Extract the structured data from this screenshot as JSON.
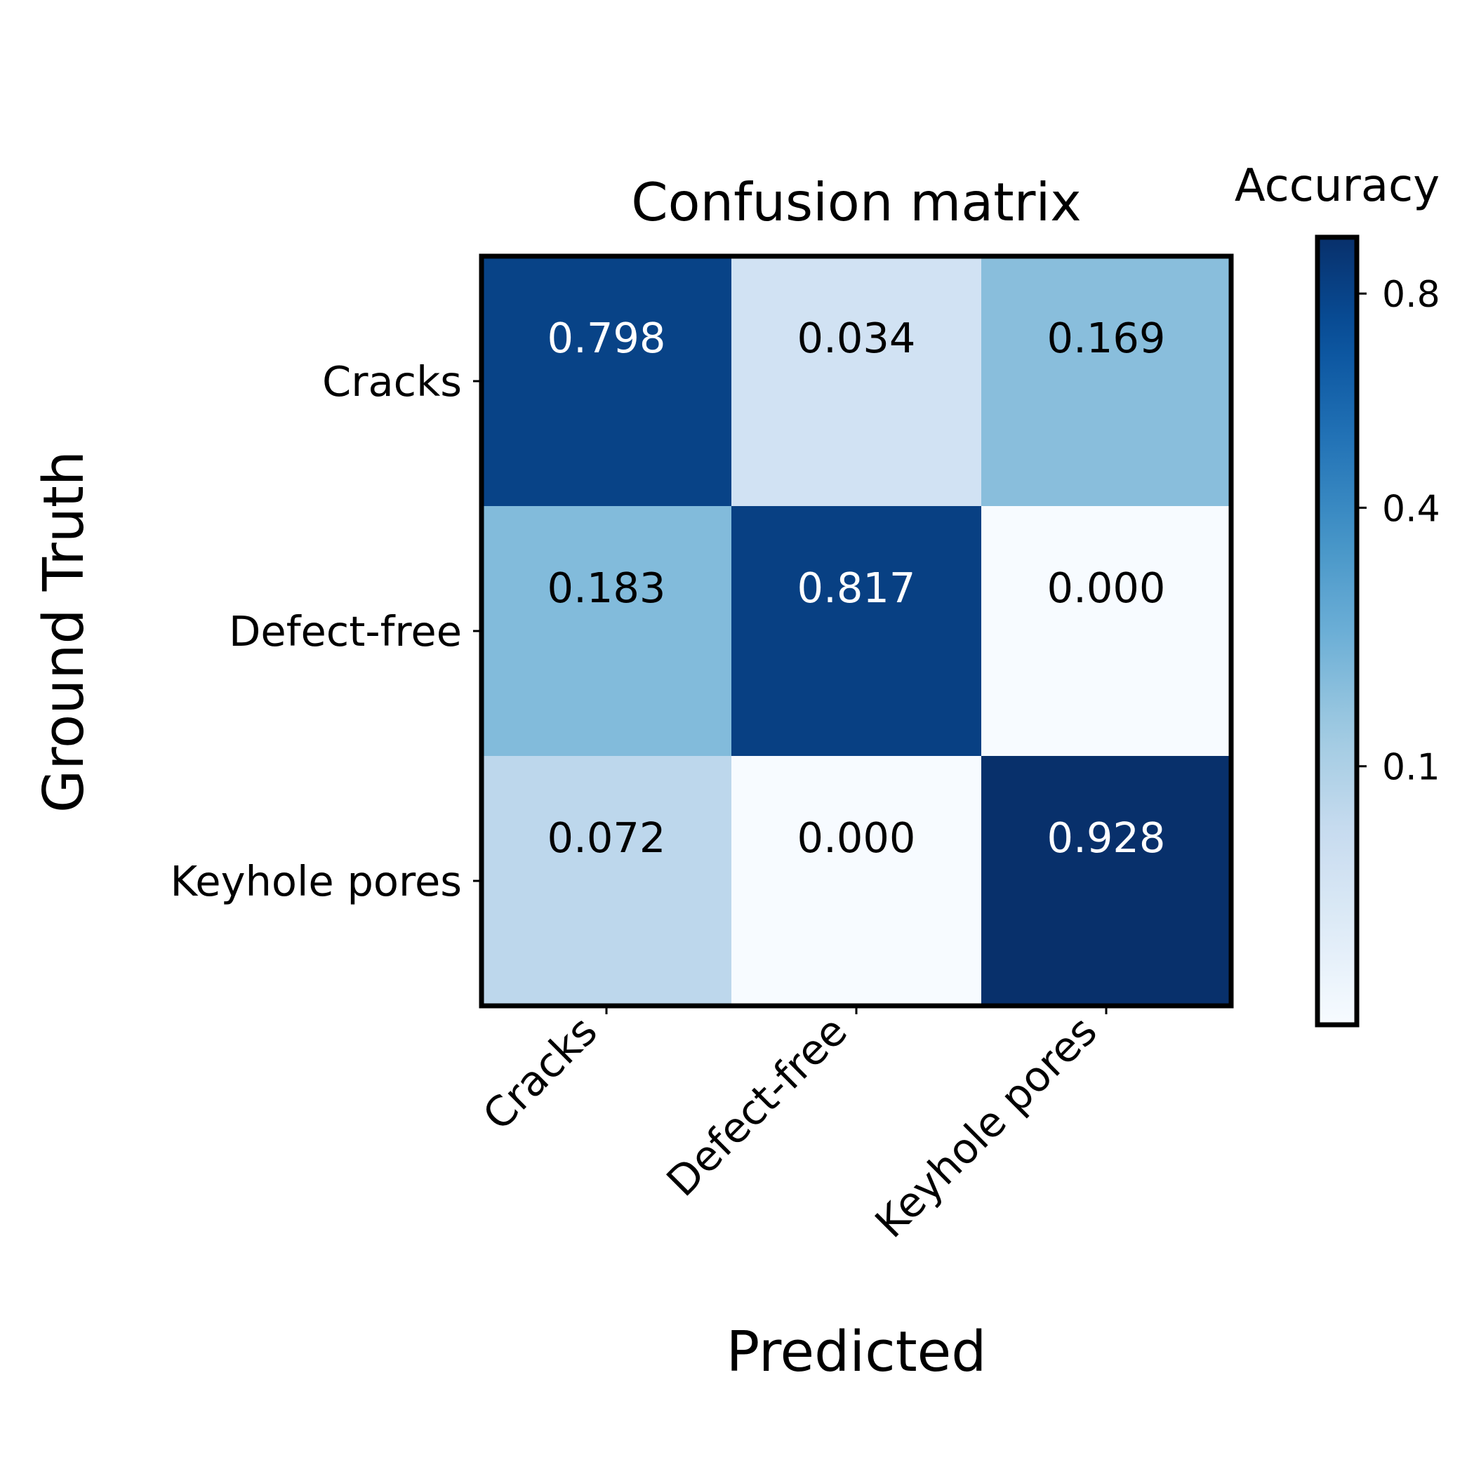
{
  "chart_data": {
    "type": "heatmap",
    "title": "Confusion matrix",
    "xlabel": "Predicted",
    "ylabel": "Ground Truth",
    "x_categories": [
      "Cracks",
      "Defect-free",
      "Keyhole pores"
    ],
    "y_categories": [
      "Cracks",
      "Defect-free",
      "Keyhole pores"
    ],
    "values": [
      [
        0.798,
        0.034,
        0.169
      ],
      [
        0.183,
        0.817,
        0.0
      ],
      [
        0.072,
        0.0,
        0.928
      ]
    ],
    "cell_labels": [
      [
        "0.798",
        "0.034",
        "0.169"
      ],
      [
        "0.183",
        "0.817",
        "0.000"
      ],
      [
        "0.072",
        "0.000",
        "0.928"
      ]
    ],
    "colorbar": {
      "title": "Accuracy",
      "min": 0,
      "max": 0.928,
      "ticks": [
        0.1,
        0.4,
        0.8
      ],
      "tick_labels": [
        "0.1",
        "0.4",
        "0.8"
      ],
      "scale": "sqrt"
    },
    "colormap": "Blues",
    "colors": {
      "light": "#f7fbff",
      "dark": "#08306b",
      "frame": "#000000"
    }
  }
}
